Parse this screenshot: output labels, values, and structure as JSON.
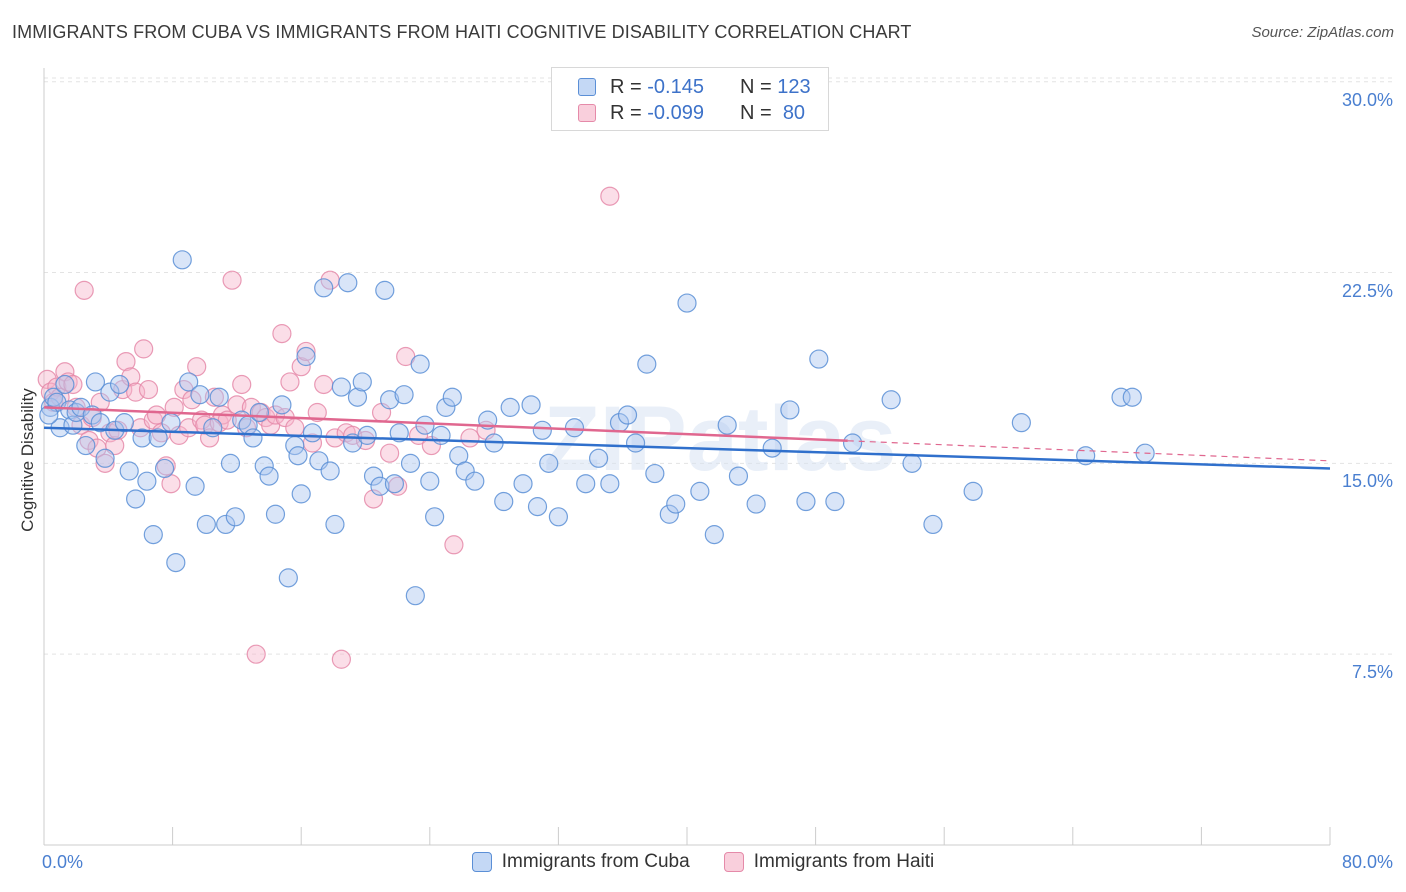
{
  "title": "IMMIGRANTS FROM CUBA VS IMMIGRANTS FROM HAITI COGNITIVE DISABILITY CORRELATION CHART",
  "source": "Source: ZipAtlas.com",
  "watermark": "ZIPatlas",
  "legend_top": [
    {
      "r_label": "R =",
      "r_value": "-0.145",
      "n_label": "N =",
      "n_value": "123"
    },
    {
      "r_label": "R =",
      "r_value": "-0.099",
      "n_label": "N =",
      "n_value": "80"
    }
  ],
  "legend_bottom": [
    "Immigrants from Cuba",
    "Immigrants from Haiti"
  ],
  "colors": {
    "cuba_fill": "#aac6f0",
    "cuba_stroke": "#5b8fd6",
    "cuba_line": "#3070cc",
    "haiti_fill": "#f6b6cb",
    "haiti_stroke": "#e58aa9",
    "haiti_line": "#e0678f",
    "tick_text": "#4a7fd0",
    "grid": "#e3e3e3"
  },
  "chart_data": {
    "type": "scatter",
    "title": "IMMIGRANTS FROM CUBA VS IMMIGRANTS FROM HAITI COGNITIVE DISABILITY CORRELATION CHART",
    "xlabel": "",
    "ylabel": "Cognitive Disability",
    "xlim": [
      0,
      80
    ],
    "ylim": [
      0,
      31.5
    ],
    "x_tick_labels": [
      "0.0%",
      "80.0%"
    ],
    "y_ticks": [
      7.5,
      15.0,
      22.5,
      30.0
    ],
    "y_tick_labels": [
      "7.5%",
      "15.0%",
      "22.5%",
      "30.0%"
    ],
    "grid": true,
    "legend_placement": "top-center",
    "series": [
      {
        "name": "Immigrants from Cuba",
        "r": -0.145,
        "n": 123,
        "trend": {
          "x": [
            0,
            80
          ],
          "y": [
            16.4,
            14.8
          ],
          "solid_to": 80
        },
        "points": [
          [
            0.4,
            17.2
          ],
          [
            0.6,
            17.6
          ],
          [
            0.8,
            17.4
          ],
          [
            1.0,
            16.4
          ],
          [
            1.3,
            18.1
          ],
          [
            1.6,
            17.1
          ],
          [
            1.8,
            16.5
          ],
          [
            2.0,
            17.0
          ],
          [
            2.3,
            17.2
          ],
          [
            2.6,
            15.7
          ],
          [
            3.0,
            16.9
          ],
          [
            3.2,
            18.2
          ],
          [
            3.5,
            16.6
          ],
          [
            3.8,
            15.2
          ],
          [
            4.1,
            17.8
          ],
          [
            4.4,
            16.3
          ],
          [
            4.7,
            18.1
          ],
          [
            5.0,
            16.6
          ],
          [
            5.3,
            14.7
          ],
          [
            5.7,
            13.6
          ],
          [
            6.1,
            16.0
          ],
          [
            6.4,
            14.3
          ],
          [
            6.8,
            12.2
          ],
          [
            7.1,
            16.0
          ],
          [
            7.5,
            14.8
          ],
          [
            7.9,
            16.6
          ],
          [
            8.2,
            11.1
          ],
          [
            8.6,
            23.0
          ],
          [
            9.0,
            18.2
          ],
          [
            9.4,
            14.1
          ],
          [
            9.7,
            17.7
          ],
          [
            10.1,
            12.6
          ],
          [
            10.5,
            16.4
          ],
          [
            10.9,
            17.6
          ],
          [
            11.3,
            12.6
          ],
          [
            11.6,
            15.0
          ],
          [
            11.9,
            12.9
          ],
          [
            12.3,
            16.7
          ],
          [
            12.7,
            16.5
          ],
          [
            13.0,
            16.0
          ],
          [
            13.4,
            17.0
          ],
          [
            13.7,
            14.9
          ],
          [
            14.0,
            14.5
          ],
          [
            14.4,
            13.0
          ],
          [
            14.8,
            17.3
          ],
          [
            15.2,
            10.5
          ],
          [
            15.6,
            15.7
          ],
          [
            15.8,
            15.3
          ],
          [
            16.0,
            13.8
          ],
          [
            16.3,
            19.2
          ],
          [
            16.7,
            16.2
          ],
          [
            17.1,
            15.1
          ],
          [
            17.4,
            21.9
          ],
          [
            17.8,
            14.7
          ],
          [
            18.1,
            12.6
          ],
          [
            18.5,
            18.0
          ],
          [
            18.9,
            22.1
          ],
          [
            19.2,
            15.8
          ],
          [
            19.5,
            17.6
          ],
          [
            19.8,
            18.2
          ],
          [
            20.1,
            16.1
          ],
          [
            20.5,
            14.5
          ],
          [
            20.9,
            14.1
          ],
          [
            21.2,
            21.8
          ],
          [
            21.5,
            17.5
          ],
          [
            21.8,
            14.2
          ],
          [
            22.1,
            16.2
          ],
          [
            22.4,
            17.7
          ],
          [
            22.8,
            15.0
          ],
          [
            23.1,
            9.8
          ],
          [
            23.4,
            18.9
          ],
          [
            23.7,
            16.5
          ],
          [
            24.0,
            14.3
          ],
          [
            24.3,
            12.9
          ],
          [
            24.7,
            16.1
          ],
          [
            25.0,
            17.2
          ],
          [
            25.4,
            17.6
          ],
          [
            25.8,
            15.3
          ],
          [
            26.2,
            14.7
          ],
          [
            26.8,
            14.3
          ],
          [
            27.6,
            16.7
          ],
          [
            28.0,
            15.8
          ],
          [
            28.6,
            13.5
          ],
          [
            29.0,
            17.2
          ],
          [
            29.8,
            14.2
          ],
          [
            30.3,
            17.3
          ],
          [
            30.7,
            13.3
          ],
          [
            31.0,
            16.3
          ],
          [
            31.4,
            15.0
          ],
          [
            32.0,
            12.9
          ],
          [
            33.0,
            16.4
          ],
          [
            33.7,
            14.2
          ],
          [
            34.5,
            15.2
          ],
          [
            35.2,
            14.2
          ],
          [
            35.8,
            16.6
          ],
          [
            36.3,
            16.9
          ],
          [
            36.8,
            15.8
          ],
          [
            37.5,
            18.9
          ],
          [
            38.0,
            14.6
          ],
          [
            38.9,
            13.0
          ],
          [
            39.3,
            13.4
          ],
          [
            40.0,
            21.3
          ],
          [
            40.8,
            13.9
          ],
          [
            41.7,
            12.2
          ],
          [
            42.5,
            16.5
          ],
          [
            43.2,
            14.5
          ],
          [
            44.3,
            13.4
          ],
          [
            45.3,
            15.6
          ],
          [
            46.4,
            17.1
          ],
          [
            47.4,
            13.5
          ],
          [
            48.2,
            19.1
          ],
          [
            49.2,
            13.5
          ],
          [
            50.3,
            15.8
          ],
          [
            52.7,
            17.5
          ],
          [
            54.0,
            15.0
          ],
          [
            55.3,
            12.6
          ],
          [
            57.8,
            13.9
          ],
          [
            60.8,
            16.6
          ],
          [
            64.8,
            15.3
          ],
          [
            67.0,
            17.6
          ],
          [
            67.7,
            17.6
          ],
          [
            68.5,
            15.4
          ],
          [
            0.3,
            16.9
          ]
        ]
      },
      {
        "name": "Immigrants from Haiti",
        "r": -0.099,
        "n": 80,
        "trend": {
          "x": [
            0,
            80
          ],
          "y": [
            17.2,
            15.1
          ],
          "solid_to": 50
        },
        "points": [
          [
            0.2,
            18.3
          ],
          [
            0.4,
            17.8
          ],
          [
            0.6,
            17.4
          ],
          [
            0.8,
            18.0
          ],
          [
            1.0,
            17.6
          ],
          [
            1.3,
            18.6
          ],
          [
            1.5,
            18.2
          ],
          [
            1.8,
            18.1
          ],
          [
            2.0,
            17.2
          ],
          [
            2.3,
            16.5
          ],
          [
            2.5,
            21.8
          ],
          [
            2.8,
            15.9
          ],
          [
            3.0,
            16.8
          ],
          [
            3.3,
            15.6
          ],
          [
            3.5,
            17.4
          ],
          [
            3.8,
            15.0
          ],
          [
            4.1,
            16.2
          ],
          [
            4.4,
            15.7
          ],
          [
            4.6,
            16.3
          ],
          [
            4.9,
            17.9
          ],
          [
            5.1,
            19.0
          ],
          [
            5.4,
            18.4
          ],
          [
            5.7,
            17.8
          ],
          [
            6.0,
            16.4
          ],
          [
            6.2,
            19.5
          ],
          [
            6.5,
            17.9
          ],
          [
            6.8,
            16.7
          ],
          [
            7.0,
            16.9
          ],
          [
            7.3,
            16.2
          ],
          [
            7.6,
            14.9
          ],
          [
            7.9,
            14.2
          ],
          [
            8.1,
            17.2
          ],
          [
            8.4,
            16.1
          ],
          [
            8.7,
            17.9
          ],
          [
            9.0,
            16.4
          ],
          [
            9.2,
            17.5
          ],
          [
            9.5,
            18.8
          ],
          [
            9.8,
            16.7
          ],
          [
            10.0,
            16.5
          ],
          [
            10.3,
            16.0
          ],
          [
            10.6,
            17.6
          ],
          [
            10.9,
            16.6
          ],
          [
            11.1,
            16.9
          ],
          [
            11.4,
            16.7
          ],
          [
            11.7,
            22.2
          ],
          [
            12.0,
            17.3
          ],
          [
            12.3,
            18.1
          ],
          [
            12.6,
            16.4
          ],
          [
            12.9,
            17.2
          ],
          [
            13.2,
            7.5
          ],
          [
            13.5,
            17.0
          ],
          [
            13.8,
            16.8
          ],
          [
            14.1,
            16.5
          ],
          [
            14.4,
            16.9
          ],
          [
            14.8,
            20.1
          ],
          [
            15.0,
            16.8
          ],
          [
            15.3,
            18.2
          ],
          [
            15.6,
            16.4
          ],
          [
            16.0,
            18.8
          ],
          [
            16.3,
            19.4
          ],
          [
            16.7,
            15.8
          ],
          [
            17.0,
            17.0
          ],
          [
            17.4,
            18.1
          ],
          [
            17.8,
            22.2
          ],
          [
            18.1,
            16.0
          ],
          [
            18.5,
            7.3
          ],
          [
            18.8,
            16.2
          ],
          [
            19.2,
            16.1
          ],
          [
            20.0,
            15.9
          ],
          [
            20.5,
            13.6
          ],
          [
            21.0,
            17.0
          ],
          [
            21.5,
            15.4
          ],
          [
            22.0,
            14.1
          ],
          [
            22.5,
            19.2
          ],
          [
            23.3,
            16.1
          ],
          [
            24.1,
            15.7
          ],
          [
            25.5,
            11.8
          ],
          [
            26.5,
            16.0
          ],
          [
            27.5,
            16.3
          ],
          [
            35.2,
            25.5
          ]
        ]
      }
    ]
  }
}
